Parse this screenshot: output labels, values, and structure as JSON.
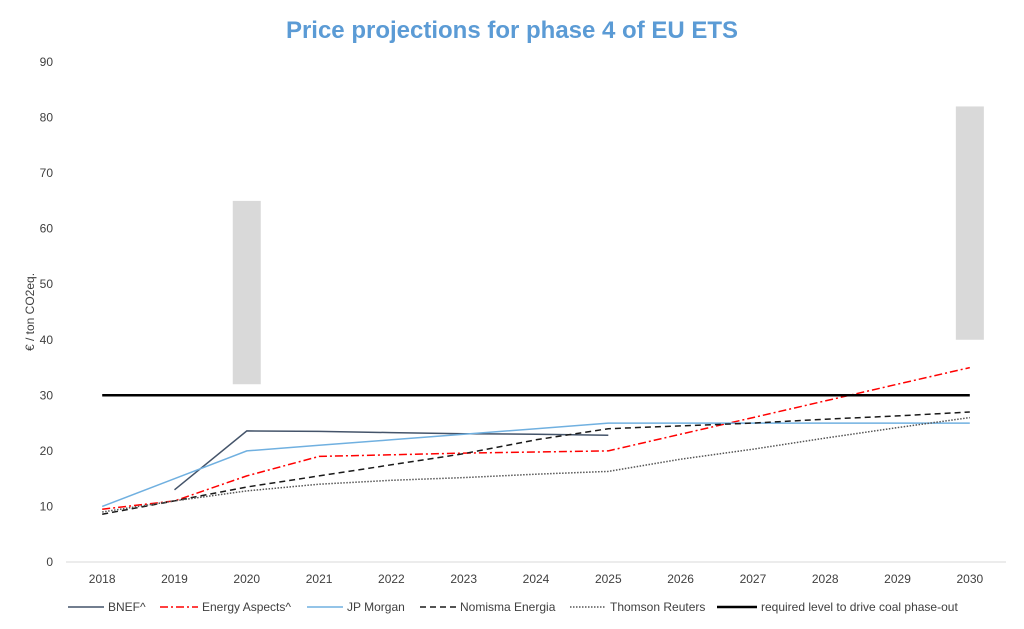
{
  "chart_data": {
    "type": "line",
    "title": "Price projections for phase 4 of EU ETS",
    "xlabel": "",
    "ylabel": "€ / ton CO2eq.",
    "ylim": [
      0,
      90
    ],
    "yticks": [
      0,
      10,
      20,
      30,
      40,
      50,
      60,
      70,
      80,
      90
    ],
    "categories": [
      "2018",
      "2019",
      "2020",
      "2021",
      "2022",
      "2023",
      "2024",
      "2025",
      "2026",
      "2027",
      "2028",
      "2029",
      "2030"
    ],
    "grid": false,
    "legend_position": "bottom",
    "title_color": "#5b9bd5",
    "series": [
      {
        "name": "BNEF^",
        "color": "#44546a",
        "dash": "solid",
        "values": [
          null,
          13,
          23.6,
          23.5,
          23.3,
          23.1,
          23,
          22.8,
          null,
          null,
          null,
          null,
          null
        ]
      },
      {
        "name": "Energy Aspects^",
        "color": "#ff0000",
        "dash": "dashdot",
        "values": [
          9.5,
          11,
          15.5,
          19,
          19.3,
          19.6,
          19.8,
          20,
          23,
          26,
          29,
          32,
          35
        ]
      },
      {
        "name": "JP Morgan",
        "color": "#70b0e0",
        "dash": "solid",
        "values": [
          10,
          15,
          20,
          21,
          22,
          23,
          24,
          25,
          25,
          25,
          25,
          25,
          25
        ]
      },
      {
        "name": "Nomisma Energia",
        "color": "#1a1a1a",
        "dash": "dashed",
        "values": [
          8.6,
          11,
          13.5,
          15.5,
          17.5,
          19.5,
          22,
          24,
          24.5,
          25,
          25.7,
          26.3,
          27
        ]
      },
      {
        "name": "Thomson Reuters",
        "color": "#555555",
        "dash": "dotted",
        "values": [
          9,
          11,
          12.8,
          14,
          14.7,
          15.2,
          15.8,
          16.3,
          18.5,
          20.3,
          22.3,
          24.2,
          26
        ]
      },
      {
        "name": "required level to drive coal phase-out",
        "color": "#000000",
        "dash": "solid",
        "thick": true,
        "values": [
          30,
          30,
          30,
          30,
          30,
          30,
          30,
          30,
          30,
          30,
          30,
          30,
          30
        ]
      }
    ],
    "ranges": [
      {
        "x": "2020",
        "low": 32,
        "high": 65,
        "color": "#d9d9d9"
      },
      {
        "x": "2030",
        "low": 40,
        "high": 82,
        "color": "#d9d9d9"
      }
    ]
  }
}
